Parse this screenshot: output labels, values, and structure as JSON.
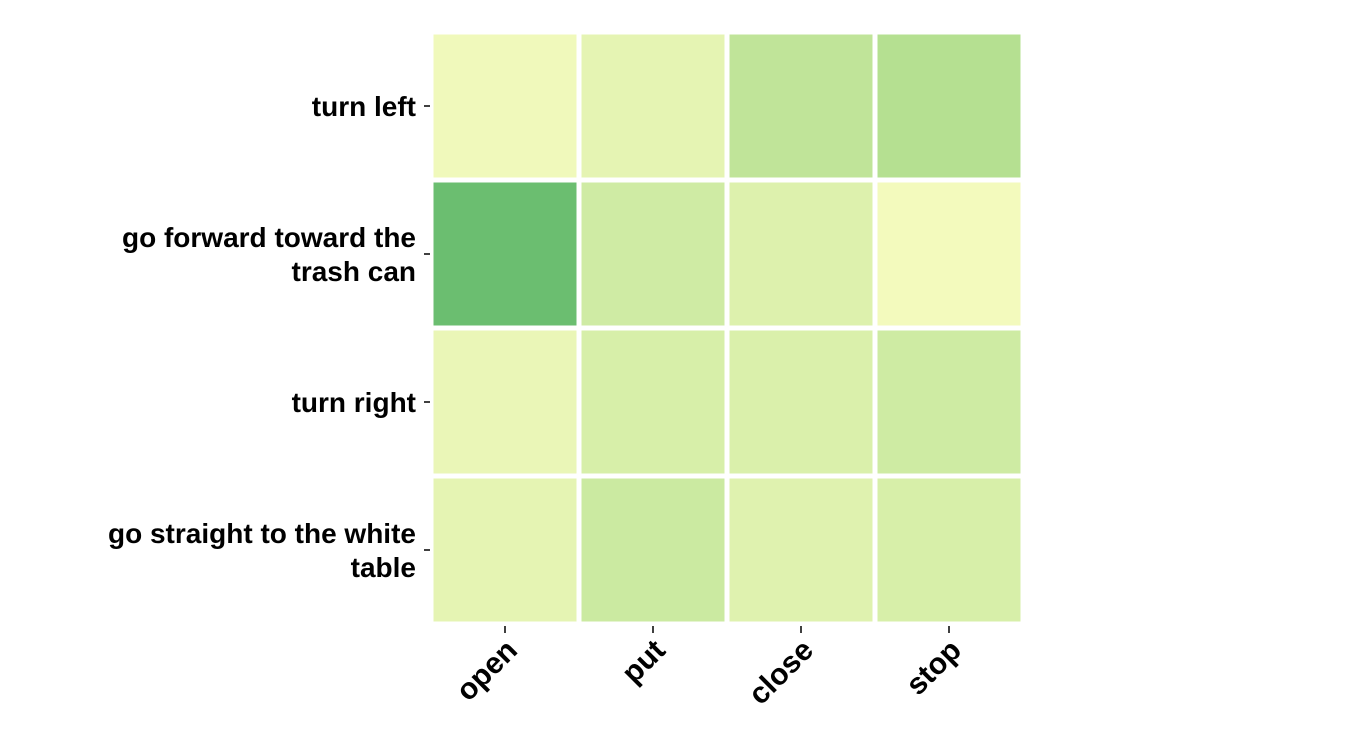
{
  "chart_data": {
    "type": "heatmap",
    "rows": [
      [
        "turn left"
      ],
      [
        "go forward toward the",
        "trash can"
      ],
      [
        "turn right"
      ],
      [
        "go straight to the white",
        "table"
      ]
    ],
    "columns": [
      "open",
      "put",
      "close",
      "stop"
    ],
    "values": [
      [
        0.05,
        0.14,
        0.42,
        0.5
      ],
      [
        0.82,
        0.3,
        0.2,
        0.03
      ],
      [
        0.1,
        0.24,
        0.22,
        0.31
      ],
      [
        0.14,
        0.33,
        0.18,
        0.24
      ]
    ],
    "vmin": 0,
    "vmax": 1,
    "colormap": {
      "low": "#f7fcc0",
      "mid": "#b5e091",
      "high": "#41ab5d"
    },
    "grid_color": "#ffffff",
    "colorbar": false
  }
}
